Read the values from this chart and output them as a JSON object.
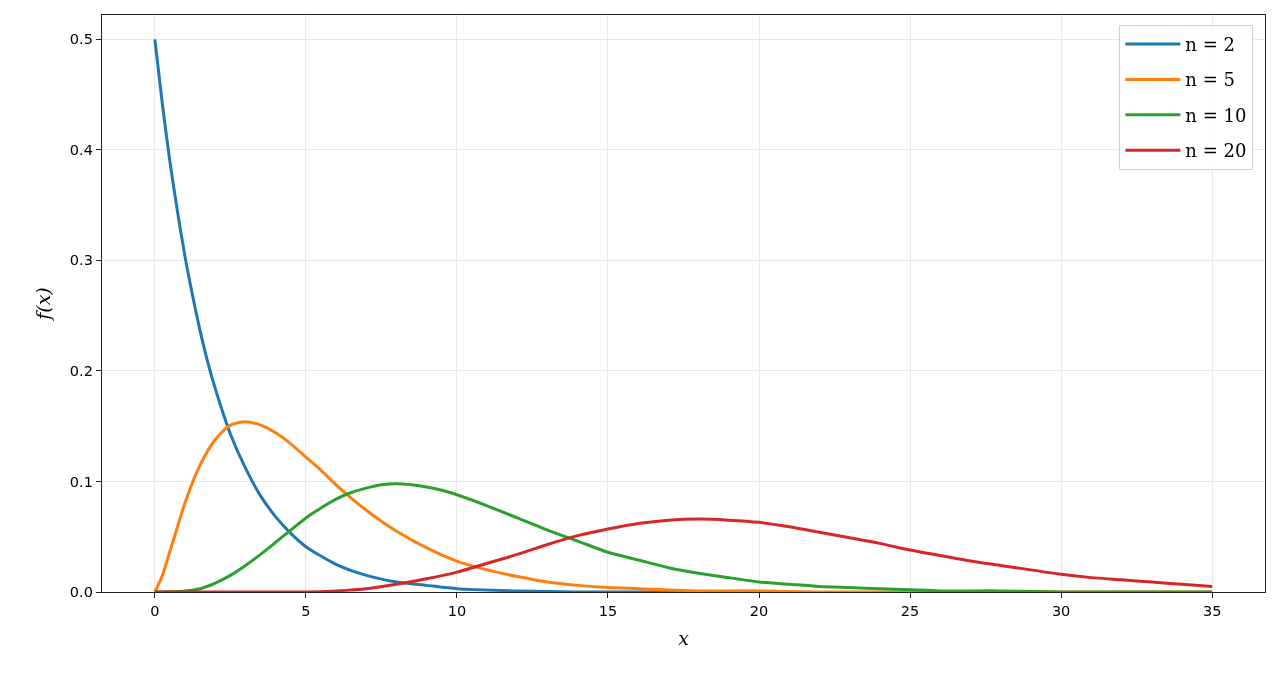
{
  "chart_data": {
    "type": "line",
    "xlabel": "x",
    "ylabel": "f(x)",
    "xlim": [
      -1.75,
      36.75
    ],
    "xticks": [
      0,
      5,
      10,
      15,
      20,
      25,
      30,
      35
    ],
    "ylim": [
      0,
      0.522
    ],
    "yticks": [
      {
        "value": 0,
        "label": "0.0"
      },
      0.1,
      0.2,
      0.3,
      0.4,
      0.5
    ],
    "grid": true,
    "legend": "top right",
    "line_style": "solid",
    "series": [
      {
        "name": "n = 2",
        "color": "#1f77b4",
        "x": [
          0,
          0.25,
          0.5,
          0.75,
          1,
          1.25,
          1.5,
          1.75,
          2,
          2.5,
          3,
          3.5,
          4,
          4.5,
          5,
          6,
          7,
          8,
          9,
          10,
          12,
          14,
          16,
          20
        ],
        "values": [
          0.5,
          0.441,
          0.389,
          0.344,
          0.303,
          0.268,
          0.236,
          0.208,
          0.184,
          0.143,
          0.112,
          0.087,
          0.068,
          0.053,
          0.041,
          0.025,
          0.015,
          0.009,
          0.006,
          0.003,
          0.001,
          0,
          0,
          0
        ]
      },
      {
        "name": "n = 5",
        "color": "#ff7f0e",
        "x": [
          0,
          0.25,
          0.5,
          0.75,
          1,
          1.5,
          2,
          2.5,
          3,
          3.5,
          4,
          4.5,
          5,
          5.5,
          6,
          6.5,
          7,
          7.5,
          8,
          9,
          10,
          11,
          12,
          13,
          14,
          15,
          16,
          18,
          20,
          22,
          25,
          30,
          35
        ],
        "values": [
          0,
          0.015,
          0.037,
          0.059,
          0.081,
          0.115,
          0.138,
          0.151,
          0.154,
          0.151,
          0.144,
          0.134,
          0.122,
          0.11,
          0.097,
          0.085,
          0.074,
          0.064,
          0.055,
          0.04,
          0.028,
          0.02,
          0.014,
          0.009,
          0.006,
          0.004,
          0.003,
          0.001,
          0.001,
          0,
          0,
          0,
          0
        ]
      },
      {
        "name": "n = 10",
        "color": "#2ca02c",
        "x": [
          0,
          1,
          1.5,
          2,
          2.5,
          3,
          3.5,
          4,
          4.5,
          5,
          5.5,
          6,
          6.5,
          7,
          7.5,
          8,
          8.5,
          9,
          9.5,
          10,
          11,
          12,
          13,
          14,
          15,
          16,
          17,
          18,
          19,
          20,
          21,
          22,
          23,
          24,
          25,
          26,
          28,
          30,
          35
        ],
        "values": [
          0,
          0.001,
          0.003,
          0.008,
          0.015,
          0.024,
          0.034,
          0.045,
          0.056,
          0.067,
          0.076,
          0.084,
          0.09,
          0.094,
          0.097,
          0.098,
          0.097,
          0.095,
          0.092,
          0.088,
          0.078,
          0.067,
          0.056,
          0.046,
          0.036,
          0.029,
          0.022,
          0.017,
          0.013,
          0.009,
          0.007,
          0.005,
          0.004,
          0.003,
          0.002,
          0.001,
          0.001,
          0,
          0
        ]
      },
      {
        "name": "n = 20",
        "color": "#d62728",
        "x": [
          0,
          4,
          5,
          6,
          7,
          8,
          9,
          10,
          11,
          12,
          13,
          14,
          15,
          16,
          17,
          18,
          19,
          20,
          21,
          22,
          23,
          24,
          25,
          26,
          27,
          28,
          29,
          30,
          31,
          32,
          33,
          34,
          35
        ],
        "values": [
          0,
          0,
          0,
          0.001,
          0.003,
          0.007,
          0.012,
          0.018,
          0.026,
          0.034,
          0.043,
          0.051,
          0.057,
          0.062,
          0.065,
          0.066,
          0.065,
          0.063,
          0.059,
          0.054,
          0.049,
          0.044,
          0.038,
          0.033,
          0.028,
          0.024,
          0.02,
          0.016,
          0.013,
          0.011,
          0.009,
          0.007,
          0.005
        ]
      }
    ]
  }
}
